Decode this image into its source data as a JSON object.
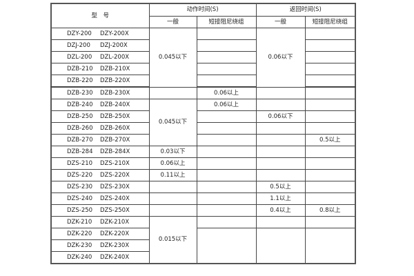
{
  "header": {
    "model": "型　号",
    "action_time": "动作时间(S)",
    "return_time": "返回时间(S)",
    "general": "一般",
    "short_winding": "短接阻尼绕组"
  },
  "rows": [
    {
      "a": "DZY-200",
      "b": "DZY-200X"
    },
    {
      "a": "DZJ-200",
      "b": "DZJ-200X"
    },
    {
      "a": "DZL-200",
      "b": "DZL-200X"
    },
    {
      "a": "DZB-210",
      "b": "DZB-210X"
    },
    {
      "a": "DZB-220",
      "b": "DZB-220X"
    },
    {
      "a": "DZB-230",
      "b": "DZB-230X"
    },
    {
      "a": "DZB-240",
      "b": "DZB-240X"
    },
    {
      "a": "DZB-250",
      "b": "DZB-250X"
    },
    {
      "a": "DZB-260",
      "b": "DZB-260X"
    },
    {
      "a": "DZB-270",
      "b": "DZB-270X"
    },
    {
      "a": "DZB-284",
      "b": "DZB-284X"
    },
    {
      "a": "DZS-210",
      "b": "DZS-210X"
    },
    {
      "a": "DZS-220",
      "b": "DZS-220X"
    },
    {
      "a": "DZS-230",
      "b": "DZS-230X"
    },
    {
      "a": "DZS-240",
      "b": "DZS-240X"
    },
    {
      "a": "DZS-250",
      "b": "DZS-250X"
    },
    {
      "a": "DZK-210",
      "b": "DZK-210X"
    },
    {
      "a": "DZK-220",
      "b": "DZK-220X"
    },
    {
      "a": "DZK-230",
      "b": "DZK-230X"
    },
    {
      "a": "DZK-240",
      "b": "DZK-240X"
    }
  ],
  "cells": [
    [
      {
        "t": "0.045以下",
        "rs": 5
      },
      {
        "t": ""
      },
      {
        "t": "0.06以下",
        "rs": 5
      },
      {
        "t": ""
      }
    ],
    [
      {
        "t": ""
      },
      {
        "t": ""
      }
    ],
    [
      {
        "t": ""
      },
      {
        "t": ""
      }
    ],
    [
      {
        "t": ""
      },
      {
        "t": ""
      }
    ],
    [
      {
        "t": ""
      },
      {
        "t": ""
      }
    ],
    [
      {
        "t": ""
      },
      {
        "t": "0.06以上"
      },
      {
        "t": ""
      },
      {
        "t": ""
      }
    ],
    [
      {
        "t": "0.045以下",
        "rs": 4
      },
      {
        "t": "0.06以上"
      },
      {
        "t": ""
      },
      {
        "t": ""
      }
    ],
    [
      {
        "t": ""
      },
      {
        "t": "0.06以下"
      },
      {
        "t": ""
      }
    ],
    [
      {
        "t": ""
      },
      {
        "t": ""
      },
      {
        "t": ""
      }
    ],
    [
      {
        "t": ""
      },
      {
        "t": ""
      },
      {
        "t": "0.5以上"
      }
    ],
    [
      {
        "t": "0.03以下"
      },
      {
        "t": ""
      },
      {
        "t": ""
      },
      {
        "t": ""
      }
    ],
    [
      {
        "t": "0.06以上"
      },
      {
        "t": ""
      },
      {
        "t": ""
      },
      {
        "t": ""
      }
    ],
    [
      {
        "t": "0.11以上"
      },
      {
        "t": ""
      },
      {
        "t": ""
      },
      {
        "t": ""
      }
    ],
    [
      {
        "t": ""
      },
      {
        "t": ""
      },
      {
        "t": "0.5以上"
      },
      {
        "t": ""
      }
    ],
    [
      {
        "t": ""
      },
      {
        "t": ""
      },
      {
        "t": "1.1以上"
      },
      {
        "t": ""
      }
    ],
    [
      {
        "t": ""
      },
      {
        "t": ""
      },
      {
        "t": "0.4以上"
      },
      {
        "t": "0.8以上"
      }
    ],
    [
      {
        "t": "0.015以下",
        "rs": 4
      },
      {
        "t": ""
      },
      {
        "t": ""
      },
      {
        "t": ""
      }
    ],
    [
      {
        "t": "",
        "rs": 3
      },
      {
        "t": "",
        "rs": 3
      },
      {
        "t": "",
        "rs": 3
      }
    ],
    [],
    []
  ]
}
